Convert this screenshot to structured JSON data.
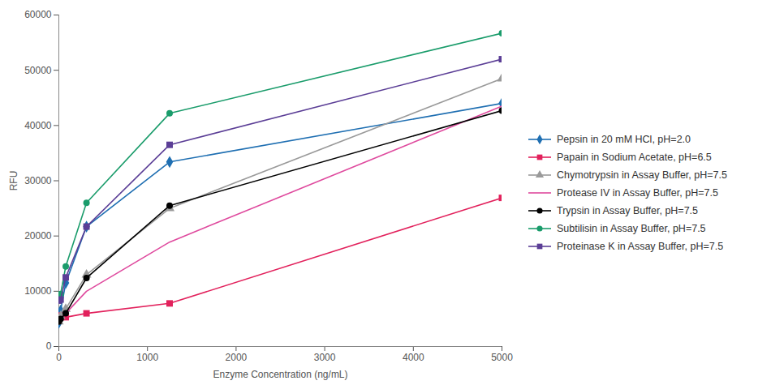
{
  "chart_data": {
    "type": "line",
    "x_label": "Enzyme Concentration (ng/mL)",
    "y_label": "RFU",
    "x": [
      0,
      20,
      78,
      312,
      1250,
      5000
    ],
    "xlim": [
      0,
      5000
    ],
    "xticks": [
      0,
      1000,
      2000,
      3000,
      4000,
      5000
    ],
    "ylim": [
      0,
      60000
    ],
    "yticks": [
      0,
      10000,
      20000,
      30000,
      40000,
      50000,
      60000
    ],
    "grid": false,
    "legend": "right",
    "series": [
      {
        "name": "Pepsin in 20 mM HCl, pH=2.0",
        "color": "#1f6fb2",
        "marker": "diamond",
        "values": [
          4300,
          6500,
          11500,
          21700,
          33400,
          44000
        ]
      },
      {
        "name": "Papain in Sodium Acetate, pH=6.5",
        "color": "#e2215c",
        "marker": "square",
        "values": [
          5500,
          5600,
          5300,
          6000,
          7800,
          26900
        ]
      },
      {
        "name": "Chymotrypsin in Assay Buffer, pH=7.5",
        "color": "#9a9a9a",
        "marker": "triangle",
        "values": [
          4500,
          5500,
          6800,
          13000,
          25000,
          48500
        ]
      },
      {
        "name": "Protease IV in Assay Buffer, pH=7.5",
        "color": "#df4a9e",
        "marker": "none",
        "values": [
          4500,
          5000,
          6000,
          10000,
          18900,
          43500
        ]
      },
      {
        "name": "Trypsin in Assay Buffer, pH=7.5",
        "color": "#000000",
        "marker": "circle",
        "values": [
          4500,
          5000,
          6000,
          12400,
          25500,
          42700
        ]
      },
      {
        "name": "Subtilisin in Assay Buffer, pH=7.5",
        "color": "#1a9c6b",
        "marker": "circle",
        "values": [
          9000,
          9500,
          14500,
          26000,
          42200,
          56700
        ]
      },
      {
        "name": "Proteinase K in Assay Buffer, pH=7.5",
        "color": "#5b3e96",
        "marker": "square",
        "values": [
          8300,
          8500,
          12500,
          21700,
          36500,
          52000
        ]
      }
    ]
  }
}
